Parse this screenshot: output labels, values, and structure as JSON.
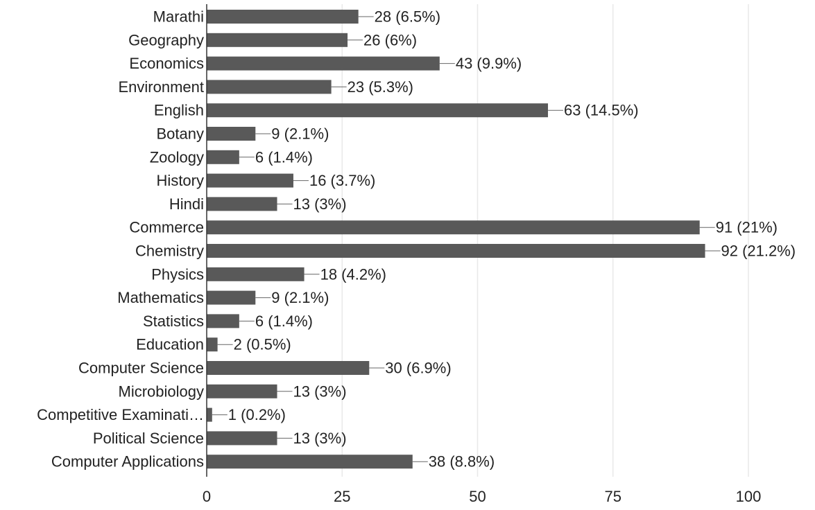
{
  "chart_data": {
    "type": "bar",
    "orientation": "horizontal",
    "categories": [
      "Marathi",
      "Geography",
      "Economics",
      "Environment",
      "English",
      "Botany",
      "Zoology",
      "History",
      "Hindi",
      "Commerce",
      "Chemistry",
      "Physics",
      "Mathematics",
      "Statistics",
      "Education",
      "Computer Science",
      "Microbiology",
      "Competitive Examinati…",
      "Political Science",
      "Computer Applications"
    ],
    "values": [
      28,
      26,
      43,
      23,
      63,
      9,
      6,
      16,
      13,
      91,
      92,
      18,
      9,
      6,
      2,
      30,
      13,
      1,
      13,
      38
    ],
    "data_labels": [
      "28 (6.5%)",
      "26 (6%)",
      "43 (9.9%)",
      "23 (5.3%)",
      "63 (14.5%)",
      "9 (2.1%)",
      "6 (1.4%)",
      "16 (3.7%)",
      "13 (3%)",
      "91 (21%)",
      "92 (21.2%)",
      "18 (4.2%)",
      "9 (2.1%)",
      "6 (1.4%)",
      "2 (0.5%)",
      "30 (6.9%)",
      "13 (3%)",
      "1 (0.2%)",
      "13 (3%)",
      "38 (8.8%)"
    ],
    "x_ticks": [
      "0",
      "25",
      "50",
      "75",
      "100"
    ],
    "xlim": [
      0,
      100
    ],
    "grid": true,
    "bar_color": "#595959",
    "grid_color": "#e8e8e8",
    "axis_color": "#333333",
    "label_color": "#222222",
    "title": "",
    "xlabel": "",
    "ylabel": ""
  }
}
